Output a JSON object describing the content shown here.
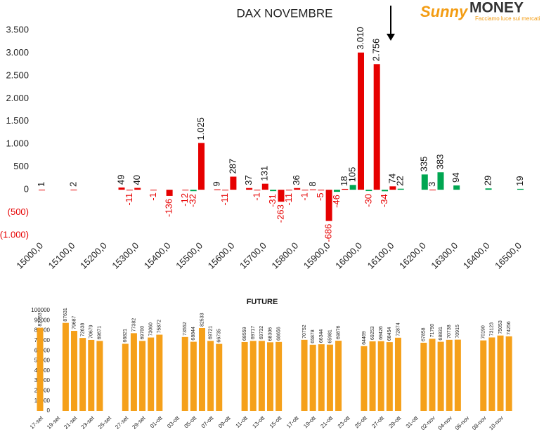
{
  "logo": {
    "brand": "Sunny",
    "name": "MONEY",
    "tagline": "Facciamo luce sui mercati"
  },
  "chart_data": [
    {
      "type": "bar",
      "title": "DAX NOVEMBRE",
      "x": [
        15000,
        15100,
        15250,
        15275,
        15300,
        15350,
        15400,
        15450,
        15475,
        15500,
        15550,
        15575,
        15600,
        15650,
        15675,
        15700,
        15725,
        15750,
        15775,
        15800,
        15825,
        15850,
        15875,
        15900,
        15925,
        15950,
        15975,
        16000,
        16025,
        16050,
        16075,
        16100,
        16125,
        16200,
        16225,
        16250,
        16300,
        16400,
        16500
      ],
      "values": [
        1,
        2,
        49,
        -11,
        40,
        -1,
        -136,
        -12,
        -32,
        1025,
        9,
        -11,
        287,
        37,
        -1,
        131,
        -31,
        -263,
        -11,
        36,
        -1,
        8,
        -5,
        -686,
        -46,
        18,
        105,
        3010,
        -30,
        2756,
        -34,
        74,
        22,
        335,
        3,
        383,
        94,
        29,
        19
      ],
      "value_labels": [
        "1",
        "2",
        "49",
        "-11",
        "40",
        "-1",
        "-136",
        "-12",
        "-32",
        "1.025",
        "9",
        "-11",
        "287",
        "37",
        "-1",
        "131",
        "-31",
        "-263",
        "-11",
        "36",
        "-1",
        "8",
        "-5",
        "-686",
        "-46",
        "18",
        "105",
        "3.010",
        "-30",
        "2.756",
        "-34",
        "74",
        "22",
        "335",
        "3",
        "383",
        "94",
        "29",
        "19"
      ],
      "colors": [
        "#e60000",
        "#e60000",
        "#e60000",
        "#e60000",
        "#e60000",
        "#e60000",
        "#e60000",
        "#e60000",
        "#00a651",
        "#e60000",
        "#e60000",
        "#e60000",
        "#e60000",
        "#e60000",
        "#e60000",
        "#e60000",
        "#00a651",
        "#e60000",
        "#e60000",
        "#e60000",
        "#e60000",
        "#e60000",
        "#e60000",
        "#e60000",
        "#00a651",
        "#e60000",
        "#00a651",
        "#e60000",
        "#00a651",
        "#e60000",
        "#00a651",
        "#e60000",
        "#00a651",
        "#00a651",
        "#e60000",
        "#00a651",
        "#00a651",
        "#00a651",
        "#00a651"
      ],
      "xlim": [
        14990,
        16510
      ],
      "xticks": [
        {
          "value": 15000,
          "label": "15000,0"
        },
        {
          "value": 15100,
          "label": "15100,0"
        },
        {
          "value": 15200,
          "label": "15200,0"
        },
        {
          "value": 15300,
          "label": "15300,0"
        },
        {
          "value": 15400,
          "label": "15400,0"
        },
        {
          "value": 15500,
          "label": "15500,0"
        },
        {
          "value": 15600,
          "label": "15600,0"
        },
        {
          "value": 15700,
          "label": "15700,0"
        },
        {
          "value": 15800,
          "label": "15800,0"
        },
        {
          "value": 15900,
          "label": "15900,0"
        },
        {
          "value": 16000,
          "label": "16000,0"
        },
        {
          "value": 16100,
          "label": "16100,0"
        },
        {
          "value": 16200,
          "label": "16200,0"
        },
        {
          "value": 16300,
          "label": "16300,0"
        },
        {
          "value": 16400,
          "label": "16400,0"
        },
        {
          "value": 16500,
          "label": "16500,0"
        }
      ],
      "ylim": [
        -1000,
        3500
      ],
      "yticks": [
        {
          "value": -1000,
          "label": "(1.000)"
        },
        {
          "value": -500,
          "label": "(500)"
        },
        0,
        500,
        {
          "value": 1000,
          "label": "1.000"
        },
        {
          "value": 1500,
          "label": "1.500"
        },
        {
          "value": 2000,
          "label": "2.000"
        },
        {
          "value": 2500,
          "label": "2.500"
        },
        {
          "value": 3000,
          "label": "3.000"
        },
        {
          "value": 3500,
          "label": "3.500"
        }
      ]
    },
    {
      "type": "bar",
      "title": "FUTURE",
      "color": "#f5a01a",
      "categories": [
        "17-set",
        null,
        "19-set",
        null,
        "21-set",
        null,
        "23-set",
        null,
        "25-set",
        null,
        "27-set",
        null,
        "29-set",
        null,
        "01-ott",
        null,
        "03-ott",
        null,
        "05-ott",
        null,
        "07-ott",
        null,
        "09-ott",
        null,
        "11-ott",
        null,
        "13-ott",
        null,
        "15-ott",
        null,
        "17-ott",
        null,
        "19-ott",
        null,
        "21-ott",
        null,
        "23-ott",
        null,
        "25-ott",
        null,
        "27-ott",
        null,
        "29-ott",
        null,
        "31-ott",
        null,
        "02-nov",
        null,
        "04-nov",
        null,
        "06-nov",
        null,
        "08-nov",
        null,
        "10-nov",
        null
      ],
      "values": [
        82763,
        null,
        null,
        87631,
        79687,
        72638,
        70679,
        69671,
        null,
        null,
        66821,
        77382,
        69700,
        73060,
        75872,
        null,
        null,
        73552,
        68844,
        82533,
        69721,
        66735,
        null,
        null,
        68559,
        69717,
        69732,
        68306,
        68656,
        null,
        null,
        70752,
        65878,
        66344,
        65981,
        69876,
        null,
        null,
        64469,
        69253,
        69426,
        68454,
        72874,
        null,
        null,
        67858,
        71790,
        68831,
        70738,
        70915,
        null,
        null,
        70190,
        73123,
        75053,
        74256
      ],
      "ylim": [
        0,
        100000
      ],
      "yticks": [
        0,
        10000,
        20000,
        30000,
        40000,
        50000,
        60000,
        70000,
        80000,
        90000,
        100000
      ]
    }
  ]
}
